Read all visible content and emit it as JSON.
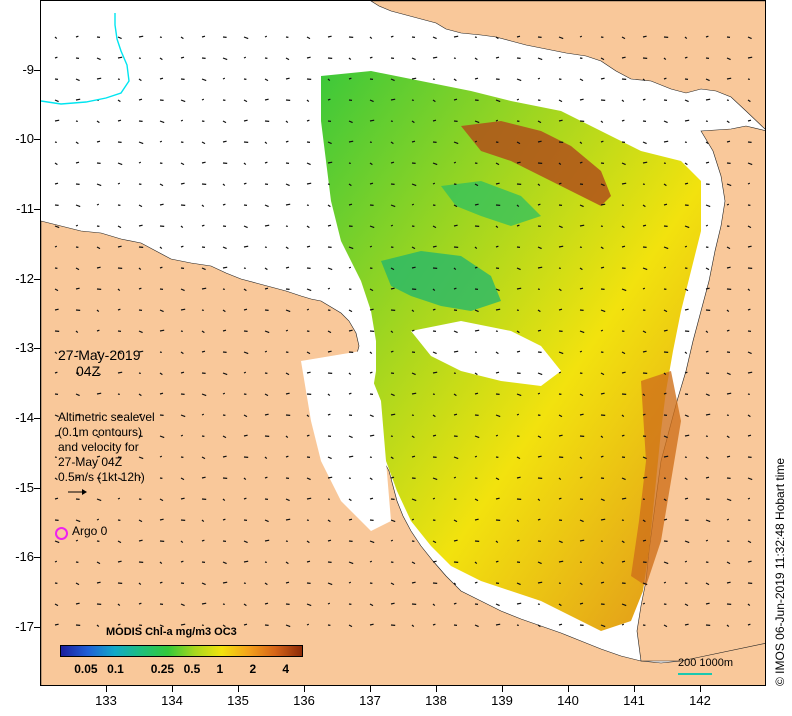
{
  "map": {
    "lat_ticks": [
      "-9",
      "-10",
      "-11",
      "-12",
      "-13",
      "-14",
      "-15",
      "-16",
      "-17"
    ],
    "lon_ticks": [
      "133",
      "134",
      "135",
      "136",
      "137",
      "138",
      "139",
      "140",
      "141",
      "142"
    ],
    "lat_range": [
      -8.0,
      -17.85
    ],
    "lon_range": [
      132.0,
      143.0
    ],
    "colors": {
      "land": "#f9c89a",
      "coast": "#222222",
      "contour": "#00e5f0",
      "argo": "#ee22ee",
      "scale_bar": "#19c8b0"
    }
  },
  "annotations": {
    "date": "27-May-2019",
    "hour": "04Z",
    "legend_lines": [
      "Altimetric sealevel",
      "(0.1m contours)",
      "and velocity for",
      "27-May 04Z",
      "0.5m/s (1kt 12h)"
    ],
    "argo_label": "Argo 0",
    "scale_label": "200  1000m",
    "credit": "© IMOS 06-Jun-2019 11:32:48 Hobart time"
  },
  "colorbar": {
    "title": "MODIS Chl-a mg/m3 OC3",
    "ticks": [
      "0.05",
      "0.1",
      "0.25",
      "0.5",
      "1",
      "2",
      "4"
    ],
    "scale": "log",
    "range": [
      0.03,
      5
    ],
    "stops": [
      "#1a1e9e",
      "#1f5fd6",
      "#12a8c8",
      "#1ebf7c",
      "#34c83a",
      "#a8d71e",
      "#f2e20e",
      "#f4a21c",
      "#d66418",
      "#8c2a08"
    ]
  }
}
